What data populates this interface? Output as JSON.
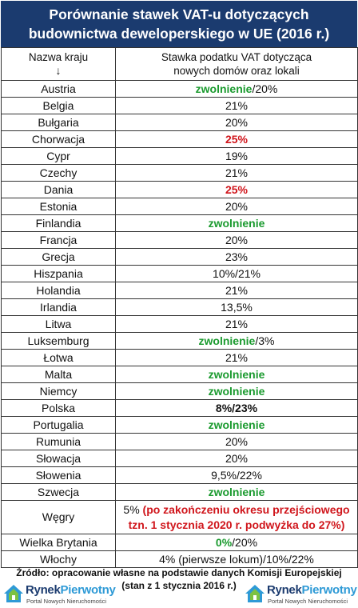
{
  "title": {
    "line1": "Porównanie stawek VAT-u dotyczących",
    "line2": "budownictwa deweloperskiego w UE (2016 r.)"
  },
  "header": {
    "col1": "Nazwa kraju",
    "col1_arrow": "↓",
    "col2_line1": "Stawka podatku VAT dotycząca",
    "col2_line2": "nowych domów oraz lokali"
  },
  "rows": [
    {
      "country": "Austria",
      "parts": [
        {
          "t": "zwolnienie",
          "s": "g"
        },
        {
          "t": "/20%",
          "s": ""
        }
      ]
    },
    {
      "country": "Belgia",
      "parts": [
        {
          "t": "21%",
          "s": ""
        }
      ]
    },
    {
      "country": "Bułgaria",
      "parts": [
        {
          "t": "20%",
          "s": ""
        }
      ]
    },
    {
      "country": "Chorwacja",
      "parts": [
        {
          "t": "25%",
          "s": "r"
        }
      ]
    },
    {
      "country": "Cypr",
      "parts": [
        {
          "t": "19%",
          "s": ""
        }
      ]
    },
    {
      "country": "Czechy",
      "parts": [
        {
          "t": "21%",
          "s": ""
        }
      ]
    },
    {
      "country": "Dania",
      "parts": [
        {
          "t": "25%",
          "s": "r"
        }
      ]
    },
    {
      "country": "Estonia",
      "parts": [
        {
          "t": "20%",
          "s": ""
        }
      ]
    },
    {
      "country": "Finlandia",
      "parts": [
        {
          "t": "zwolnienie",
          "s": "g"
        }
      ]
    },
    {
      "country": "Francja",
      "parts": [
        {
          "t": "20%",
          "s": ""
        }
      ]
    },
    {
      "country": "Grecja",
      "parts": [
        {
          "t": "23%",
          "s": ""
        }
      ]
    },
    {
      "country": "Hiszpania",
      "parts": [
        {
          "t": "10%/21%",
          "s": ""
        }
      ]
    },
    {
      "country": "Holandia",
      "parts": [
        {
          "t": "21%",
          "s": ""
        }
      ]
    },
    {
      "country": "Irlandia",
      "parts": [
        {
          "t": "13,5%",
          "s": ""
        }
      ]
    },
    {
      "country": "Litwa",
      "parts": [
        {
          "t": "21%",
          "s": ""
        }
      ]
    },
    {
      "country": "Luksemburg",
      "parts": [
        {
          "t": "zwolnienie",
          "s": "g"
        },
        {
          "t": "/3%",
          "s": ""
        }
      ]
    },
    {
      "country": "Łotwa",
      "parts": [
        {
          "t": "21%",
          "s": ""
        }
      ]
    },
    {
      "country": "Malta",
      "parts": [
        {
          "t": "zwolnienie",
          "s": "g"
        }
      ]
    },
    {
      "country": "Niemcy",
      "parts": [
        {
          "t": "zwolnienie",
          "s": "g"
        }
      ]
    },
    {
      "country": "Polska",
      "parts": [
        {
          "t": "8%/23%",
          "s": "b"
        }
      ]
    },
    {
      "country": "Portugalia",
      "parts": [
        {
          "t": "zwolnienie",
          "s": "g"
        }
      ]
    },
    {
      "country": "Rumunia",
      "parts": [
        {
          "t": "20%",
          "s": ""
        }
      ]
    },
    {
      "country": "Słowacja",
      "parts": [
        {
          "t": "20%",
          "s": ""
        }
      ]
    },
    {
      "country": "Słowenia",
      "parts": [
        {
          "t": "9,5%/22%",
          "s": ""
        }
      ]
    },
    {
      "country": "Szwecja",
      "parts": [
        {
          "t": "zwolnienie",
          "s": "g"
        }
      ]
    },
    {
      "country": "Węgry",
      "tall": true,
      "parts": [
        {
          "t": "5% ",
          "s": ""
        },
        {
          "t": "(po zakończeniu okresu przejściowego",
          "s": "r"
        },
        {
          "br": true
        },
        {
          "t": "tzn. 1 stycznia 2020 r. podwyżka do 27%)",
          "s": "r"
        }
      ]
    },
    {
      "country": "Wielka Brytania",
      "parts": [
        {
          "t": "0%",
          "s": "g"
        },
        {
          "t": "/20%",
          "s": ""
        }
      ]
    },
    {
      "country": "Włochy",
      "parts": [
        {
          "t": "4% (pierwsze lokum)/10%/22%",
          "s": ""
        }
      ]
    }
  ],
  "source": {
    "line1": "Źródło: opracowanie własne na podstawie danych Komisji Europejskiej",
    "line2": "(stan z 1 stycznia 2016 r.)"
  },
  "logo": {
    "brand_part1": "Rynek",
    "brand_part2": "Pierwotny",
    "tagline": "Portal Nowych Nieruchomości"
  },
  "colors": {
    "title_bg": "#1b3b6f",
    "green": "#1a9a2e",
    "red": "#d0161c"
  }
}
